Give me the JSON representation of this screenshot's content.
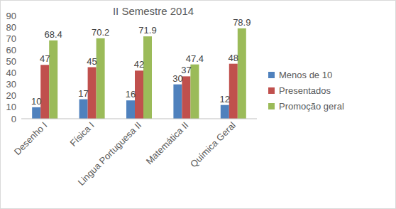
{
  "chart_data": {
    "type": "bar",
    "title": "II Semestre 2014",
    "categories": [
      "Desenho I",
      "Física I",
      "Lingua Portuguesa II",
      "Matemática II",
      "Química Geral"
    ],
    "series": [
      {
        "name": "Menos de 10",
        "color": "#4f81bd",
        "values": [
          10,
          17,
          16,
          30,
          12
        ]
      },
      {
        "name": "Presentados",
        "color": "#c0504d",
        "values": [
          47,
          45,
          42,
          37,
          48
        ]
      },
      {
        "name": "Promoção geral",
        "color": "#9bbb59",
        "values": [
          68.4,
          70.2,
          71.9,
          47.4,
          78.9
        ]
      }
    ],
    "ylim": [
      0,
      90
    ],
    "yticks": [
      0,
      10,
      20,
      30,
      40,
      50,
      60,
      70,
      80,
      90
    ],
    "grid": false,
    "data_labels": true,
    "legend": "right"
  }
}
